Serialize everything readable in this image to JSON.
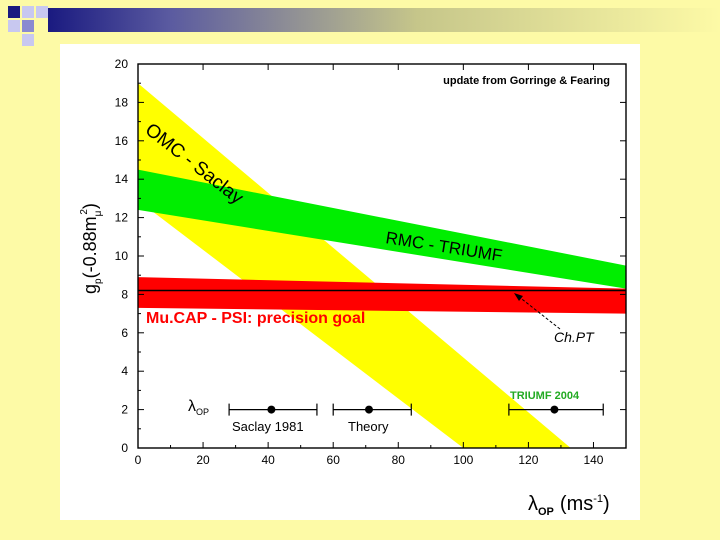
{
  "slide": {
    "colors": {
      "background": "#fdfaa6",
      "stripe": "#1a1a80",
      "omc_band": "#ffff00",
      "rmc_band": "#00ee00",
      "mucap_band": "#ff0000",
      "chpt_line": "#000000"
    }
  },
  "chart_data": {
    "type": "area",
    "title": "update from Gorringe & Fearing",
    "xlabel": "λ",
    "xlabel_sub": "OP",
    "xlabel_unit": "(ms",
    "xlabel_unit_sup": "-1",
    "xlabel_unit_close": ")",
    "ylabel": "g",
    "ylabel_sub": "p",
    "ylabel_mid": "(-0.88m",
    "ylabel_mid_sub": "μ",
    "ylabel_mid_sup": "2",
    "ylabel_end": ")",
    "xlim": [
      0,
      150
    ],
    "ylim": [
      0,
      20
    ],
    "x_ticks": [
      "0",
      "20",
      "40",
      "60",
      "80",
      "100",
      "120",
      "140"
    ],
    "y_ticks": [
      "0",
      "2",
      "4",
      "6",
      "8",
      "10",
      "12",
      "14",
      "16",
      "18",
      "20"
    ],
    "bands": [
      {
        "name": "OMC - Saclay",
        "color": "#ffff00",
        "polygon": [
          [
            0,
            19
          ],
          [
            0,
            12.9
          ],
          [
            100,
            0
          ],
          [
            133,
            0
          ]
        ]
      },
      {
        "name": "RMC - TRIUMF",
        "color": "#00ee00",
        "polygon": [
          [
            0,
            14.5
          ],
          [
            150,
            9.5
          ],
          [
            150,
            8.3
          ],
          [
            0,
            12.4
          ]
        ]
      },
      {
        "name": "MuCAP - PSI: precision goal",
        "color": "#ff0000",
        "polygon": [
          [
            0,
            8.9
          ],
          [
            150,
            8.3
          ],
          [
            150,
            7.0
          ],
          [
            0,
            7.3
          ]
        ]
      }
    ],
    "lines": [
      {
        "name": "ChPT",
        "y": 8.2,
        "color": "#000000"
      }
    ],
    "error_bars": [
      {
        "name": "Saclay 1981",
        "x": 41,
        "xmin": 28,
        "xmax": 55,
        "y": 2
      },
      {
        "name": "Theory",
        "x": 71,
        "xmin": 60,
        "xmax": 84,
        "y": 2
      },
      {
        "name": "TRIUMF 2004",
        "x": 128,
        "xmin": 114,
        "xmax": 143,
        "y": 2
      }
    ],
    "annotations": {
      "omc": "OMC - Saclay",
      "rmc": "RMC - TRIUMF",
      "mucap": "Mu.CAP - PSI: precision goal",
      "chpt": "Ch.PT",
      "triumf2004": "TRIUMF 2004",
      "saclay1981": "Saclay 1981",
      "theory": "Theory",
      "lambda_op": "λ",
      "lambda_op_sub": "OP"
    }
  }
}
